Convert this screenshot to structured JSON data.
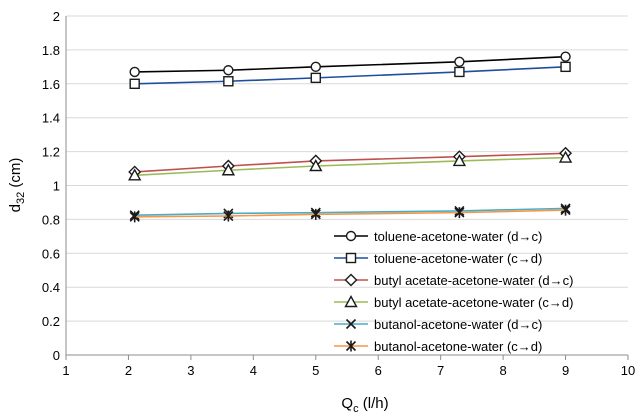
{
  "chart_data": {
    "type": "line",
    "xlabel": "Q",
    "xlabel_sub": "c",
    "xlabel_unit": " (l/h)",
    "ylabel": "d",
    "ylabel_sub": "32",
    "ylabel_unit": " (cm)",
    "xlim": [
      1,
      10
    ],
    "ylim": [
      0,
      2
    ],
    "x_ticks": [
      "1",
      "2",
      "3",
      "4",
      "5",
      "6",
      "7",
      "8",
      "9",
      "10"
    ],
    "y_ticks": [
      "0",
      "0.2",
      "0.4",
      "0.6",
      "0.8",
      "1",
      "1.2",
      "1.4",
      "1.6",
      "1.8",
      "2"
    ],
    "grid": "horizontal",
    "legend_position": "bottom-right",
    "x": [
      2.1,
      3.6,
      5.0,
      7.3,
      9.0
    ],
    "series": [
      {
        "name": "toluene-acetone-water (d→c)",
        "values": [
          1.67,
          1.68,
          1.7,
          1.73,
          1.76
        ],
        "color": "#000000",
        "marker": "circle"
      },
      {
        "name": "toluene-acetone-water (c→d)",
        "values": [
          1.6,
          1.615,
          1.635,
          1.67,
          1.7
        ],
        "color": "#1f4e9c",
        "marker": "square"
      },
      {
        "name": "butyl acetate-acetone-water (d→c)",
        "values": [
          1.08,
          1.115,
          1.145,
          1.17,
          1.19
        ],
        "color": "#c0504d",
        "marker": "diamond"
      },
      {
        "name": "butyl acetate-acetone-water (c→d)",
        "values": [
          1.06,
          1.09,
          1.115,
          1.145,
          1.165
        ],
        "color": "#9bbb59",
        "marker": "triangle"
      },
      {
        "name": "butanol-acetone-water (d→c)",
        "values": [
          0.825,
          0.835,
          0.84,
          0.85,
          0.865
        ],
        "color": "#4bacc6",
        "marker": "x"
      },
      {
        "name": "butanol-acetone-water (c→d)",
        "values": [
          0.815,
          0.82,
          0.83,
          0.84,
          0.855
        ],
        "color": "#f79646",
        "marker": "star"
      }
    ]
  }
}
